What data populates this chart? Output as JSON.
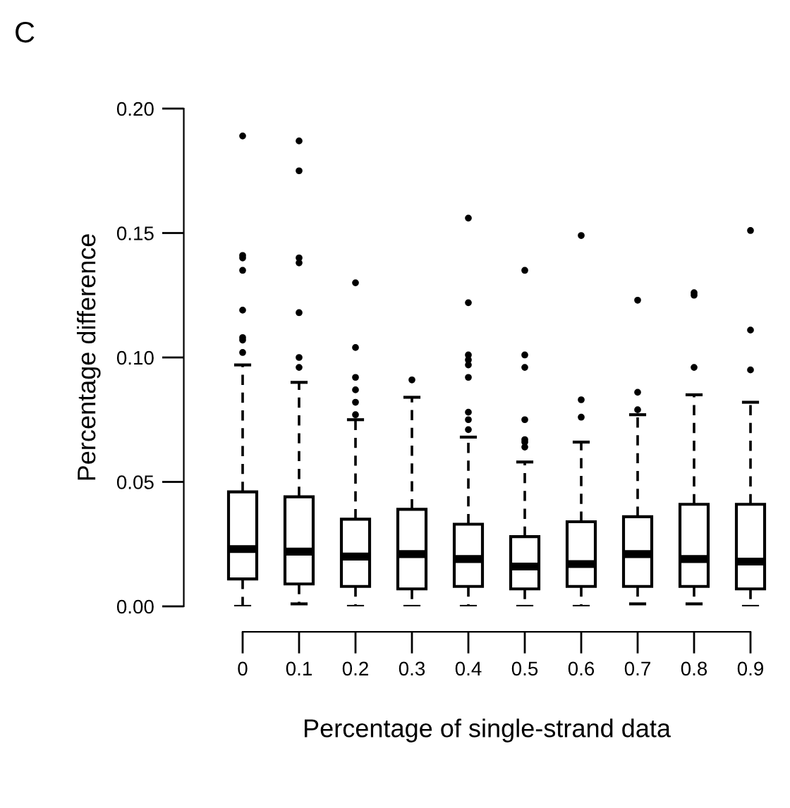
{
  "chart_data": {
    "type": "box",
    "title": "C",
    "xlabel": "Percentage of single-strand data",
    "ylabel": "Percentage difference",
    "categories": [
      "0",
      "0.1",
      "0.2",
      "0.3",
      "0.4",
      "0.5",
      "0.6",
      "0.7",
      "0.8",
      "0.9"
    ],
    "boxes": [
      {
        "low": 0.0,
        "q1": 0.011,
        "median": 0.023,
        "q3": 0.046,
        "high": 0.097,
        "outliers": [
          0.189,
          0.141,
          0.14,
          0.135,
          0.119,
          0.108,
          0.107,
          0.102
        ]
      },
      {
        "low": 0.001,
        "q1": 0.009,
        "median": 0.022,
        "q3": 0.044,
        "high": 0.09,
        "outliers": [
          0.187,
          0.175,
          0.14,
          0.138,
          0.118,
          0.1,
          0.096
        ]
      },
      {
        "low": 0.0,
        "q1": 0.008,
        "median": 0.02,
        "q3": 0.035,
        "high": 0.075,
        "outliers": [
          0.13,
          0.104,
          0.092,
          0.087,
          0.082,
          0.077
        ]
      },
      {
        "low": 0.0,
        "q1": 0.007,
        "median": 0.021,
        "q3": 0.039,
        "high": 0.084,
        "outliers": [
          0.091
        ]
      },
      {
        "low": 0.0,
        "q1": 0.008,
        "median": 0.019,
        "q3": 0.033,
        "high": 0.068,
        "outliers": [
          0.156,
          0.122,
          0.101,
          0.099,
          0.097,
          0.092,
          0.078,
          0.075,
          0.071
        ]
      },
      {
        "low": 0.0,
        "q1": 0.007,
        "median": 0.016,
        "q3": 0.028,
        "high": 0.058,
        "outliers": [
          0.135,
          0.101,
          0.096,
          0.075,
          0.067,
          0.066,
          0.064
        ]
      },
      {
        "low": 0.0,
        "q1": 0.008,
        "median": 0.017,
        "q3": 0.034,
        "high": 0.066,
        "outliers": [
          0.149,
          0.083,
          0.076
        ]
      },
      {
        "low": 0.001,
        "q1": 0.008,
        "median": 0.021,
        "q3": 0.036,
        "high": 0.077,
        "outliers": [
          0.123,
          0.086,
          0.079
        ]
      },
      {
        "low": 0.001,
        "q1": 0.008,
        "median": 0.019,
        "q3": 0.041,
        "high": 0.085,
        "outliers": [
          0.126,
          0.125,
          0.096
        ]
      },
      {
        "low": 0.0,
        "q1": 0.007,
        "median": 0.018,
        "q3": 0.041,
        "high": 0.082,
        "outliers": [
          0.151,
          0.111,
          0.095
        ]
      }
    ],
    "ylim": [
      0,
      0.2
    ],
    "yticks": [
      {
        "value": 0,
        "label": "0.00"
      },
      {
        "value": 0.05,
        "label": "0.05"
      },
      {
        "value": 0.1,
        "label": "0.10"
      },
      {
        "value": 0.15,
        "label": "0.15"
      },
      {
        "value": 0.2,
        "label": "0.20"
      }
    ]
  }
}
